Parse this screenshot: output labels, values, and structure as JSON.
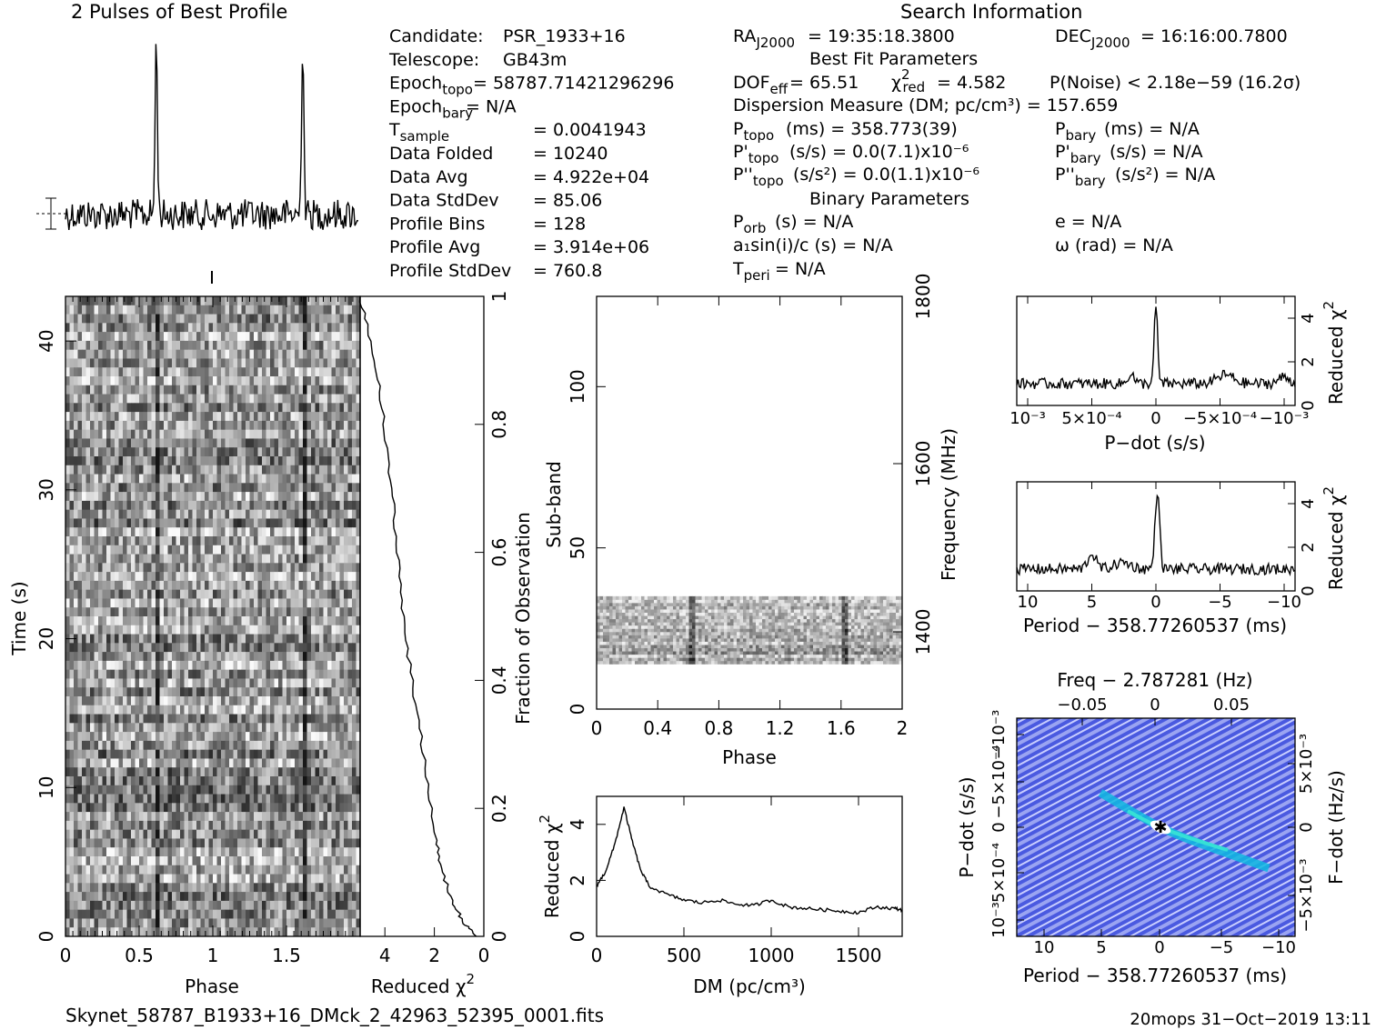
{
  "header": {
    "profile_title": "2 Pulses of Best Profile",
    "search_title": "Search Information",
    "best_fit_title": "Best Fit Parameters",
    "binary_title": "Binary Parameters"
  },
  "info_left": [
    {
      "key": "Candidate:",
      "value": "PSR_1933+16"
    },
    {
      "key": "Telescope:",
      "value": "GB43m"
    },
    {
      "key": "Epoch",
      "sub": "topo",
      "value": "= 58787.71421296296"
    },
    {
      "key": "Epoch",
      "sub": "bary",
      "value": "= N/A"
    },
    {
      "key": "T",
      "sub": "sample",
      "value": "=   0.0041943"
    },
    {
      "key": "Data Folded",
      "value": "=   10240"
    },
    {
      "key": "Data Avg",
      "value": "=   4.922e+04"
    },
    {
      "key": "Data StdDev",
      "value": "=   85.06"
    },
    {
      "key": "Profile Bins",
      "value": "=   128"
    },
    {
      "key": "Profile Avg",
      "value": "=   3.914e+06"
    },
    {
      "key": "Profile StdDev",
      "value": "=   760.8"
    }
  ],
  "info_mid": {
    "ra": "= 19:35:18.3800",
    "dof": "= 65.51",
    "chi2red": "= 4.582",
    "pnoise": "P(Noise) < 2.18e−59   (16.2σ)",
    "dm": "Dispersion Measure (DM; pc/cm³) = 157.659",
    "ptopo": "(ms) =  358.773(39)",
    "pdtopo": "(s/s) = 0.0(7.1)x10⁻⁶",
    "pddtopo": "(s/s²) = 0.0(1.1)x10⁻⁶",
    "porb": "(s) = N/A",
    "a1sini": "a₁sin(i)/c (s) = N/A",
    "tperi": "= N/A"
  },
  "info_right": {
    "dec": "= 16:16:00.7800",
    "pbary": "(ms) = N/A",
    "pdbary": "(s/s) = N/A",
    "pddbary": "(s/s²) = N/A",
    "ecc": "e = N/A",
    "omega": "ω (rad) = N/A"
  },
  "axes": {
    "time_label": "Time (s)",
    "phase_label": "Phase",
    "redchi_label": "Reduced χ²",
    "fraction_label": "Fraction of Observation",
    "subband_label": "Sub-band",
    "frequency_label": "Frequency (MHz)",
    "dm_label": "DM (pc/cm³)",
    "pdot_label": "P−dot (s/s)",
    "period_label": "Period − 358.77260537 (ms)",
    "freq_label": "Freq − 2.787281 (Hz)",
    "fdot_label": "F−dot (Hz/s)"
  },
  "footer": {
    "filename": "Skynet_58787_B1933+16_DMck_2_42963_52395_0001.fits",
    "stamp": "20mops 31−Oct−2019 13:11"
  },
  "chart_data": [
    {
      "type": "line",
      "name_panel": "profile",
      "x_range": [
        0,
        2
      ],
      "peaks_at_phase": [
        0.62,
        1.62
      ],
      "description": "two pulses of folded profile"
    },
    {
      "type": "heatmap",
      "name_panel": "phase-time",
      "x_ticks": [
        "0",
        "0.5",
        "1",
        "1.5"
      ],
      "y_ticks": [
        "0",
        "10",
        "20",
        "30",
        "40"
      ],
      "xlim": [
        0,
        2
      ],
      "ylim": [
        0,
        43
      ]
    },
    {
      "type": "line",
      "name_panel": "time-chi2",
      "x_ticks": [
        "4",
        "2",
        "0"
      ],
      "y_right_ticks": [
        "0",
        "0.2",
        "0.4",
        "0.6",
        "0.8",
        "1"
      ],
      "chi2_vs_fraction": [
        [
          0.3,
          0.0
        ],
        [
          0.8,
          0.02
        ],
        [
          1.2,
          0.05
        ],
        [
          1.7,
          0.1
        ],
        [
          1.9,
          0.15
        ],
        [
          2.3,
          0.25
        ],
        [
          2.7,
          0.35
        ],
        [
          3.1,
          0.45
        ],
        [
          3.4,
          0.55
        ],
        [
          3.6,
          0.65
        ],
        [
          3.9,
          0.75
        ],
        [
          4.2,
          0.85
        ],
        [
          4.6,
          0.93
        ],
        [
          5.0,
          1.0
        ]
      ]
    },
    {
      "type": "heatmap",
      "name_panel": "phase-subband",
      "x_ticks": [
        "0",
        "0.4",
        "0.8",
        "1.2",
        "1.6",
        "2"
      ],
      "y_ticks": [
        "0",
        "50",
        "100"
      ],
      "freq_ticks": [
        "1400",
        "1600",
        "1800"
      ],
      "xlim": [
        0,
        2
      ],
      "ylim": [
        0,
        128
      ],
      "band_rows": [
        14,
        35
      ]
    },
    {
      "type": "line",
      "name_panel": "dm-chi2",
      "x_ticks": [
        "0",
        "500",
        "1000",
        "1500"
      ],
      "y_ticks": [
        "0",
        "2",
        "4"
      ],
      "xlim": [
        0,
        1750
      ],
      "ylim": [
        0,
        5
      ],
      "points": [
        [
          0,
          1.8
        ],
        [
          50,
          2.3
        ],
        [
          100,
          3.2
        ],
        [
          157,
          4.6
        ],
        [
          200,
          3.5
        ],
        [
          250,
          2.4
        ],
        [
          300,
          1.8
        ],
        [
          400,
          1.5
        ],
        [
          500,
          1.3
        ],
        [
          600,
          1.2
        ],
        [
          700,
          1.3
        ],
        [
          800,
          1.15
        ],
        [
          900,
          1.1
        ],
        [
          1000,
          1.3
        ],
        [
          1100,
          1.05
        ],
        [
          1200,
          1.0
        ],
        [
          1300,
          0.95
        ],
        [
          1400,
          0.9
        ],
        [
          1500,
          0.85
        ],
        [
          1600,
          1.05
        ],
        [
          1700,
          1.0
        ],
        [
          1750,
          0.95
        ]
      ]
    },
    {
      "type": "line",
      "name_panel": "pdot-chi2",
      "x_ticks": [
        "10⁻³",
        "5×10⁻⁴",
        "0",
        "−5×10⁻⁴",
        "−10⁻³"
      ],
      "y_ticks": [
        "0",
        "2",
        "4"
      ],
      "ylim": [
        0,
        5
      ]
    },
    {
      "type": "line",
      "name_panel": "period-chi2",
      "x_ticks": [
        "10",
        "5",
        "0",
        "−5",
        "−10"
      ],
      "y_ticks": [
        "0",
        "2",
        "4"
      ],
      "ylim": [
        0,
        5
      ]
    },
    {
      "type": "heatmap",
      "name_panel": "period-pdot",
      "x_ticks": [
        "10",
        "5",
        "0",
        "−5",
        "−10"
      ],
      "top_ticks": [
        "−0.05",
        "0",
        "0.05"
      ],
      "left_ticks": [
        "10⁻³",
        "5×10⁻⁴",
        "0",
        "−5×10⁻⁴",
        "−10⁻³"
      ],
      "right_ticks": [
        "−5×10⁻³",
        "0",
        "5×10⁻³"
      ]
    }
  ]
}
